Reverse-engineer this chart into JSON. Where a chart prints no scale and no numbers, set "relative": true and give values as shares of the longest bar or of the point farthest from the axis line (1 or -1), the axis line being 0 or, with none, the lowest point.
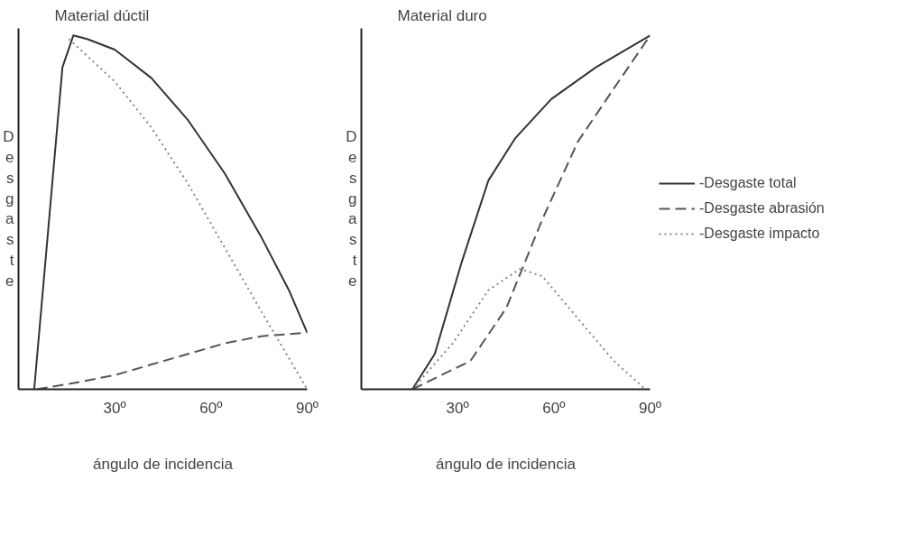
{
  "chart_data": [
    {
      "type": "line",
      "title": "Material dúctil",
      "xlabel": "ángulo de incidencia",
      "ylabel": "Desgaste",
      "relative": true,
      "xlim": [
        0,
        90
      ],
      "xticks": [
        {
          "value": 30,
          "label": "30º"
        },
        {
          "value": 60,
          "label": "60º"
        },
        {
          "value": 90,
          "label": "90º"
        }
      ],
      "tick_labels": "x",
      "grid": false,
      "legend": false,
      "series": [
        {
          "color": "#333333",
          "line_style": "solid",
          "x": [
            4.9,
            13.7,
            17.1,
            21.4,
            30,
            41.4,
            52.9,
            64.3,
            75.7,
            84.3,
            90
          ],
          "values": [
            0,
            0.91,
            1.0,
            0.99,
            0.96,
            0.88,
            0.76,
            0.61,
            0.43,
            0.28,
            0.16
          ]
        },
        {
          "color": "#555555",
          "line_style": "dashed",
          "x": [
            5.7,
            18.6,
            30,
            41.4,
            52.9,
            64.3,
            75.7,
            90
          ],
          "values": [
            0,
            0.02,
            0.04,
            0.07,
            0.1,
            0.13,
            0.15,
            0.16
          ]
        },
        {
          "color": "#7a8896",
          "line_style": "dotted",
          "x": [
            15.7,
            30,
            41.4,
            52.9,
            64.3,
            75.7,
            90
          ],
          "values": [
            0.99,
            0.87,
            0.74,
            0.58,
            0.4,
            0.22,
            0
          ]
        }
      ]
    },
    {
      "type": "line",
      "title": "Material duro",
      "xlabel": "ángulo de incidencia",
      "ylabel": "Desgaste",
      "relative": true,
      "xlim": [
        0,
        90
      ],
      "xticks": [
        {
          "value": 30,
          "label": "30º"
        },
        {
          "value": 60,
          "label": "60º"
        },
        {
          "value": 90,
          "label": "90º"
        }
      ],
      "tick_labels": "x",
      "grid": false,
      "legend": "right",
      "series": [
        {
          "name": "-Desgaste total",
          "color": "#333333",
          "line_style": "solid",
          "x": [
            15.9,
            22.9,
            31.3,
            39.6,
            48,
            59.2,
            73.1,
            90
          ],
          "values": [
            0,
            0.1,
            0.36,
            0.59,
            0.71,
            0.82,
            0.91,
            1.0
          ]
        },
        {
          "name": "-Desgaste abrasión",
          "color": "#555555",
          "line_style": "dashed",
          "x": [
            15.9,
            34,
            45.2,
            56.4,
            67.5,
            78.7,
            90
          ],
          "values": [
            0,
            0.08,
            0.23,
            0.48,
            0.7,
            0.85,
            1.0
          ]
        },
        {
          "name": "-Desgaste impacto",
          "color": "#7a8896",
          "line_style": "dotted",
          "x": [
            15.9,
            28.5,
            39.6,
            49.4,
            56.4,
            67.5,
            78.7,
            88.5
          ],
          "values": [
            0,
            0.13,
            0.28,
            0.34,
            0.32,
            0.2,
            0.08,
            0
          ]
        }
      ]
    }
  ]
}
